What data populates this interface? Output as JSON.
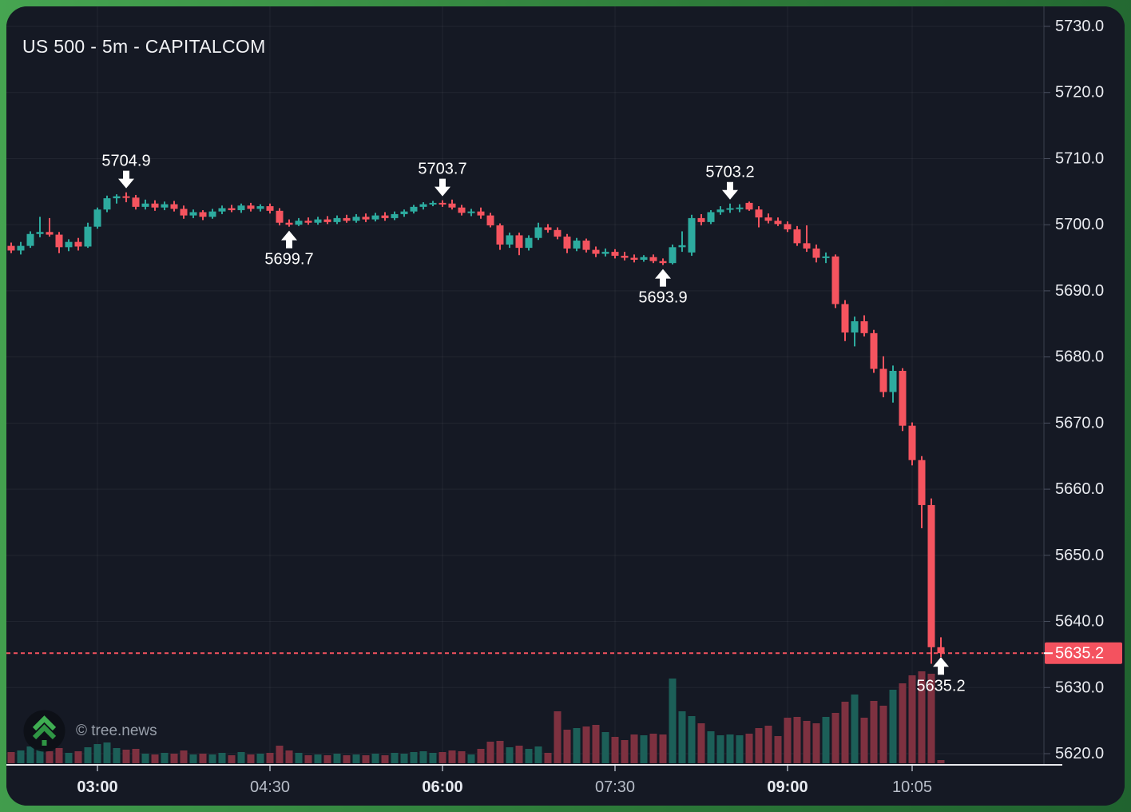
{
  "chart": {
    "title": "US 500 - 5m - CAPITALCOM",
    "watermark": "© tree.news",
    "symbol": "US 500",
    "interval": "5m",
    "exchange": "CAPITALCOM"
  },
  "chart_data": {
    "type": "candlestick",
    "title": "US 500 - 5m - CAPITALCOM",
    "legend_position": "none",
    "grid": true,
    "ylim": [
      5616,
      5733
    ],
    "y_ticks": [
      5730,
      5720,
      5710,
      5700,
      5690,
      5680,
      5670,
      5660,
      5650,
      5640,
      5630,
      5620
    ],
    "x_ticks": [
      {
        "index": 9,
        "label": "03:00",
        "bold": true
      },
      {
        "index": 27,
        "label": "04:30",
        "bold": false
      },
      {
        "index": 45,
        "label": "06:00",
        "bold": true
      },
      {
        "index": 63,
        "label": "07:30",
        "bold": false
      },
      {
        "index": 81,
        "label": "09:00",
        "bold": true
      },
      {
        "index": 94,
        "label": "10:05",
        "bold": false
      }
    ],
    "last_price": 5635.2,
    "last_price_label": "5635.2",
    "annotations": [
      {
        "candle_index": 12,
        "price": 5704.9,
        "label": "5704.9",
        "arrow": "down"
      },
      {
        "candle_index": 29,
        "price": 5699.7,
        "label": "5699.7",
        "arrow": "up"
      },
      {
        "candle_index": 45,
        "price": 5703.7,
        "label": "5703.7",
        "arrow": "down"
      },
      {
        "candle_index": 68,
        "price": 5693.9,
        "label": "5693.9",
        "arrow": "up"
      },
      {
        "candle_index": 75,
        "price": 5703.2,
        "label": "5703.2",
        "arrow": "down"
      },
      {
        "candle_index": 97,
        "price": 5635.2,
        "label": "5635.2",
        "arrow": "up"
      }
    ],
    "columns": [
      "time",
      "open",
      "high",
      "low",
      "close",
      "volume_rel"
    ],
    "candles": [
      [
        "02:15",
        5696.8,
        5697.3,
        5695.7,
        5696.1,
        14
      ],
      [
        "02:20",
        5696.1,
        5697.4,
        5695.5,
        5696.8,
        16
      ],
      [
        "02:25",
        5696.8,
        5699.0,
        5696.5,
        5698.6,
        21
      ],
      [
        "02:30",
        5698.6,
        5701.2,
        5698.1,
        5698.9,
        18
      ],
      [
        "02:35",
        5698.9,
        5701.0,
        5698.2,
        5698.5,
        15
      ],
      [
        "02:40",
        5698.5,
        5698.9,
        5695.7,
        5696.6,
        19
      ],
      [
        "02:45",
        5696.6,
        5697.8,
        5696.0,
        5697.4,
        13
      ],
      [
        "02:50",
        5697.4,
        5698.0,
        5696.1,
        5696.7,
        15
      ],
      [
        "02:55",
        5696.7,
        5700.3,
        5696.5,
        5699.7,
        20
      ],
      [
        "03:00",
        5699.7,
        5702.6,
        5699.4,
        5702.3,
        24
      ],
      [
        "03:05",
        5702.3,
        5704.4,
        5701.9,
        5704.0,
        26
      ],
      [
        "03:10",
        5704.0,
        5704.6,
        5703.2,
        5704.3,
        19
      ],
      [
        "03:15",
        5704.3,
        5704.9,
        5703.4,
        5704.1,
        17
      ],
      [
        "03:20",
        5704.1,
        5704.5,
        5702.3,
        5702.7,
        18
      ],
      [
        "03:25",
        5702.7,
        5703.8,
        5702.3,
        5703.2,
        12
      ],
      [
        "03:30",
        5703.2,
        5703.7,
        5702.1,
        5702.6,
        11
      ],
      [
        "03:35",
        5702.6,
        5703.5,
        5702.2,
        5703.1,
        13
      ],
      [
        "03:40",
        5703.1,
        5703.6,
        5702.0,
        5702.4,
        12
      ],
      [
        "03:45",
        5702.4,
        5702.9,
        5700.9,
        5701.4,
        16
      ],
      [
        "03:50",
        5701.4,
        5702.3,
        5701.0,
        5701.9,
        11
      ],
      [
        "03:55",
        5701.9,
        5702.2,
        5700.7,
        5701.2,
        12
      ],
      [
        "04:00",
        5701.2,
        5702.4,
        5700.9,
        5702.0,
        11
      ],
      [
        "04:05",
        5702.0,
        5702.9,
        5701.6,
        5702.5,
        13
      ],
      [
        "04:10",
        5702.5,
        5703.0,
        5701.9,
        5702.2,
        10
      ],
      [
        "04:15",
        5702.2,
        5703.2,
        5701.8,
        5702.9,
        14
      ],
      [
        "04:20",
        5702.9,
        5703.3,
        5702.0,
        5702.4,
        11
      ],
      [
        "04:25",
        5702.4,
        5703.1,
        5702.0,
        5702.8,
        12
      ],
      [
        "04:30",
        5702.8,
        5703.2,
        5701.7,
        5702.1,
        13
      ],
      [
        "04:35",
        5702.1,
        5702.5,
        5699.9,
        5700.3,
        22
      ],
      [
        "04:40",
        5700.3,
        5700.8,
        5699.7,
        5700.0,
        16
      ],
      [
        "04:45",
        5700.0,
        5701.0,
        5699.8,
        5700.6,
        13
      ],
      [
        "04:50",
        5700.6,
        5701.1,
        5700.0,
        5700.3,
        10
      ],
      [
        "04:55",
        5700.3,
        5701.2,
        5700.0,
        5700.8,
        11
      ],
      [
        "05:00",
        5700.8,
        5701.3,
        5700.1,
        5700.4,
        10
      ],
      [
        "05:05",
        5700.4,
        5701.4,
        5700.1,
        5701.0,
        12
      ],
      [
        "05:10",
        5701.0,
        5701.5,
        5700.3,
        5700.6,
        10
      ],
      [
        "05:15",
        5700.6,
        5701.6,
        5700.3,
        5701.2,
        11
      ],
      [
        "05:20",
        5701.2,
        5701.7,
        5700.4,
        5700.8,
        10
      ],
      [
        "05:25",
        5700.8,
        5701.8,
        5700.5,
        5701.4,
        12
      ],
      [
        "05:30",
        5701.4,
        5701.9,
        5700.6,
        5701.0,
        10
      ],
      [
        "05:35",
        5701.0,
        5702.0,
        5700.7,
        5701.6,
        13
      ],
      [
        "05:40",
        5701.6,
        5702.3,
        5701.2,
        5702.0,
        12
      ],
      [
        "05:45",
        5702.0,
        5703.0,
        5701.7,
        5702.7,
        14
      ],
      [
        "05:50",
        5702.7,
        5703.4,
        5702.3,
        5703.1,
        15
      ],
      [
        "05:55",
        5703.1,
        5703.6,
        5702.8,
        5703.3,
        13
      ],
      [
        "06:00",
        5703.3,
        5703.7,
        5702.7,
        5703.2,
        14
      ],
      [
        "06:05",
        5703.2,
        5703.8,
        5702.3,
        5702.6,
        16
      ],
      [
        "06:10",
        5702.6,
        5703.0,
        5701.4,
        5701.8,
        15
      ],
      [
        "06:15",
        5701.8,
        5702.4,
        5701.3,
        5702.0,
        11
      ],
      [
        "06:20",
        5702.0,
        5702.6,
        5700.9,
        5701.4,
        18
      ],
      [
        "06:25",
        5701.4,
        5701.8,
        5699.6,
        5699.9,
        27
      ],
      [
        "06:30",
        5699.9,
        5700.2,
        5696.2,
        5697.0,
        28
      ],
      [
        "06:35",
        5697.0,
        5698.8,
        5696.5,
        5698.4,
        20
      ],
      [
        "06:40",
        5698.4,
        5698.8,
        5695.4,
        5696.5,
        22
      ],
      [
        "06:45",
        5696.5,
        5698.4,
        5696.1,
        5698.0,
        18
      ],
      [
        "06:50",
        5698.0,
        5700.3,
        5697.7,
        5699.6,
        21
      ],
      [
        "06:55",
        5699.6,
        5700.1,
        5698.8,
        5699.2,
        13
      ],
      [
        "07:00",
        5699.2,
        5699.6,
        5697.8,
        5698.2,
        65
      ],
      [
        "07:05",
        5698.2,
        5698.6,
        5695.7,
        5696.4,
        42
      ],
      [
        "07:10",
        5696.4,
        5698.0,
        5696.0,
        5697.6,
        44
      ],
      [
        "07:15",
        5697.6,
        5697.9,
        5695.8,
        5696.2,
        46
      ],
      [
        "07:20",
        5696.2,
        5696.7,
        5695.1,
        5695.6,
        48
      ],
      [
        "07:25",
        5695.6,
        5696.4,
        5695.2,
        5695.9,
        39
      ],
      [
        "07:30",
        5695.9,
        5696.3,
        5694.9,
        5695.3,
        33
      ],
      [
        "07:35",
        5695.3,
        5695.9,
        5694.6,
        5695.0,
        29
      ],
      [
        "07:40",
        5695.0,
        5695.5,
        5694.3,
        5694.7,
        36
      ],
      [
        "07:45",
        5694.7,
        5695.4,
        5694.4,
        5695.1,
        35
      ],
      [
        "07:50",
        5695.1,
        5695.5,
        5694.2,
        5694.5,
        37
      ],
      [
        "07:55",
        5694.5,
        5694.9,
        5693.9,
        5694.2,
        36
      ],
      [
        "08:00",
        5694.2,
        5697.0,
        5694.0,
        5696.6,
        106
      ],
      [
        "08:05",
        5696.6,
        5699.0,
        5695.9,
        5696.9,
        65
      ],
      [
        "08:10",
        5695.8,
        5701.5,
        5695.3,
        5701.0,
        59
      ],
      [
        "08:15",
        5701.0,
        5701.6,
        5699.9,
        5700.4,
        50
      ],
      [
        "08:20",
        5700.4,
        5702.2,
        5700.1,
        5701.9,
        40
      ],
      [
        "08:25",
        5701.9,
        5702.8,
        5701.5,
        5702.3,
        35
      ],
      [
        "08:30",
        5702.3,
        5703.2,
        5701.8,
        5702.5,
        36
      ],
      [
        "08:35",
        5702.5,
        5703.1,
        5701.9,
        5702.6,
        35
      ],
      [
        "08:40",
        5703.3,
        5703.5,
        5702.1,
        5702.3,
        37
      ],
      [
        "08:45",
        5702.3,
        5702.8,
        5699.6,
        5701.1,
        44
      ],
      [
        "08:50",
        5701.1,
        5701.7,
        5700.2,
        5700.6,
        47
      ],
      [
        "08:55",
        5700.6,
        5701.1,
        5699.8,
        5700.1,
        34
      ],
      [
        "09:00",
        5700.1,
        5700.5,
        5698.9,
        5699.3,
        57
      ],
      [
        "09:05",
        5699.3,
        5699.8,
        5696.8,
        5697.2,
        58
      ],
      [
        "09:10",
        5697.2,
        5699.9,
        5695.9,
        5696.4,
        53
      ],
      [
        "09:15",
        5696.4,
        5697.0,
        5694.3,
        5695.0,
        50
      ],
      [
        "09:20",
        5695.0,
        5695.8,
        5694.2,
        5695.2,
        58
      ],
      [
        "09:25",
        5695.2,
        5695.5,
        5687.4,
        5688.0,
        63
      ],
      [
        "09:30",
        5688.0,
        5688.6,
        5682.4,
        5683.7,
        77
      ],
      [
        "09:35",
        5683.7,
        5686.1,
        5681.6,
        5685.4,
        86
      ],
      [
        "09:40",
        5685.4,
        5686.3,
        5683.1,
        5683.6,
        57
      ],
      [
        "09:45",
        5683.6,
        5684.1,
        5677.6,
        5678.2,
        78
      ],
      [
        "09:50",
        5678.2,
        5680.1,
        5673.9,
        5674.7,
        72
      ],
      [
        "09:55",
        5674.7,
        5678.7,
        5673.1,
        5677.9,
        92
      ],
      [
        "10:00",
        5677.9,
        5678.3,
        5668.8,
        5669.6,
        100
      ],
      [
        "10:05",
        5669.6,
        5670.1,
        5663.6,
        5664.4,
        110
      ],
      [
        "10:10",
        5664.4,
        5665.0,
        5654.1,
        5657.6,
        115
      ],
      [
        "10:15",
        5657.6,
        5658.6,
        5633.6,
        5636.1,
        112
      ],
      [
        "10:20",
        5636.1,
        5637.6,
        5634.6,
        5635.2,
        4
      ]
    ],
    "colors": {
      "panel_bg": "#151924",
      "frame_green_light": "#46a551",
      "frame_green_dark": "#20632f",
      "candle_up": "#2dab9f",
      "candle_down": "#f5545f",
      "volume_up": "#1c5f58",
      "volume_down": "#7e3140",
      "price_line": "#f4525f",
      "price_label_bg": "#f4525f",
      "axis_text": "#e9ebf0",
      "annotation": "#ffffff",
      "logo_green": "#3fae52"
    }
  }
}
